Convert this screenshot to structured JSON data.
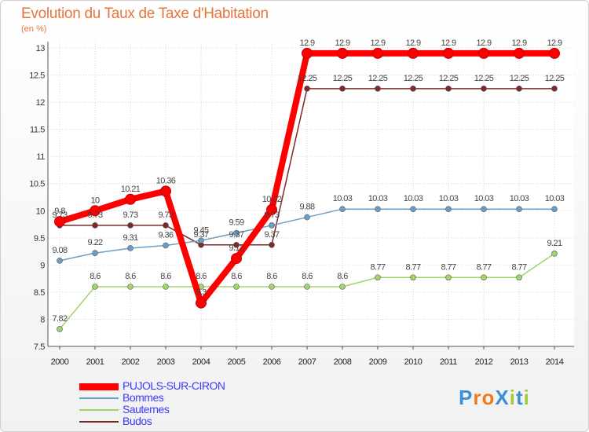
{
  "header": {
    "title": "Evolution du Taux de Taxe d'Habitation",
    "subtitle": "(en %)"
  },
  "logo": {
    "text": "ProXiti"
  },
  "chart_data": {
    "type": "line",
    "title": "Evolution du Taux de Taxe d'Habitation",
    "ylabel": "(en %)",
    "xlabel": "",
    "ylim": [
      7.5,
      13
    ],
    "yticks": [
      7.5,
      8,
      8.5,
      9,
      9.5,
      10,
      10.5,
      11,
      11.5,
      12,
      12.5,
      13
    ],
    "ytick_labels": [
      "7.5",
      "8",
      "8.5",
      "9",
      "9.5",
      "10",
      "10.5",
      "11",
      "11.5",
      "12",
      "12.5",
      "13"
    ],
    "grid": true,
    "legend_position": "bottom-left",
    "categories": [
      "2000",
      "2001",
      "2002",
      "2003",
      "2004",
      "2005",
      "2006",
      "2007",
      "2008",
      "2009",
      "2010",
      "2011",
      "2012",
      "2013",
      "2014"
    ],
    "series": [
      {
        "name": "PUJOLS-SUR-CIRON",
        "color": "#ff0000",
        "values": [
          9.8,
          10,
          10.21,
          10.36,
          8.3,
          9.12,
          10.02,
          12.9,
          12.9,
          12.9,
          12.9,
          12.9,
          12.9,
          12.9,
          12.9
        ],
        "labels": [
          "9.8",
          "10",
          "10.21",
          "10.36",
          "8.3",
          "9.12",
          "10.02",
          "12.9",
          "12.9",
          "12.9",
          "12.9",
          "12.9",
          "12.9",
          "12.9",
          "12.9"
        ]
      },
      {
        "name": "Bommes",
        "color": "#6a9ec9",
        "values": [
          9.08,
          9.22,
          9.31,
          9.36,
          9.45,
          9.59,
          9.73,
          9.88,
          10.03,
          10.03,
          10.03,
          10.03,
          10.03,
          10.03,
          10.03
        ],
        "labels": [
          "9.08",
          "9.22",
          "9.31",
          "9.36",
          "9.45",
          "9.59",
          "9.73",
          "9.88",
          "10.03",
          "10.03",
          "10.03",
          "10.03",
          "10.03",
          "10.03",
          "10.03"
        ]
      },
      {
        "name": "Sauternes",
        "color": "#9ed66a",
        "values": [
          7.82,
          8.6,
          8.6,
          8.6,
          8.6,
          8.6,
          8.6,
          8.6,
          8.6,
          8.77,
          8.77,
          8.77,
          8.77,
          8.77,
          9.21
        ],
        "labels": [
          "7.82",
          "8.6",
          "8.6",
          "8.6",
          "8.6",
          "8.6",
          "8.6",
          "8.6",
          "8.6",
          "8.77",
          "8.77",
          "8.77",
          "8.77",
          "8.77",
          "9.21"
        ]
      },
      {
        "name": "Budos",
        "color": "#7a2a2a",
        "values": [
          9.73,
          9.73,
          9.73,
          9.73,
          9.37,
          9.37,
          9.37,
          12.25,
          12.25,
          12.25,
          12.25,
          12.25,
          12.25,
          12.25,
          12.25
        ],
        "labels": [
          "9.73",
          "9.73",
          "9.73",
          "9.73",
          "9.37",
          "9.37",
          "9.37",
          "12.25",
          "12.25",
          "12.25",
          "12.25",
          "12.25",
          "12.25",
          "12.25",
          "12.25"
        ]
      }
    ]
  }
}
